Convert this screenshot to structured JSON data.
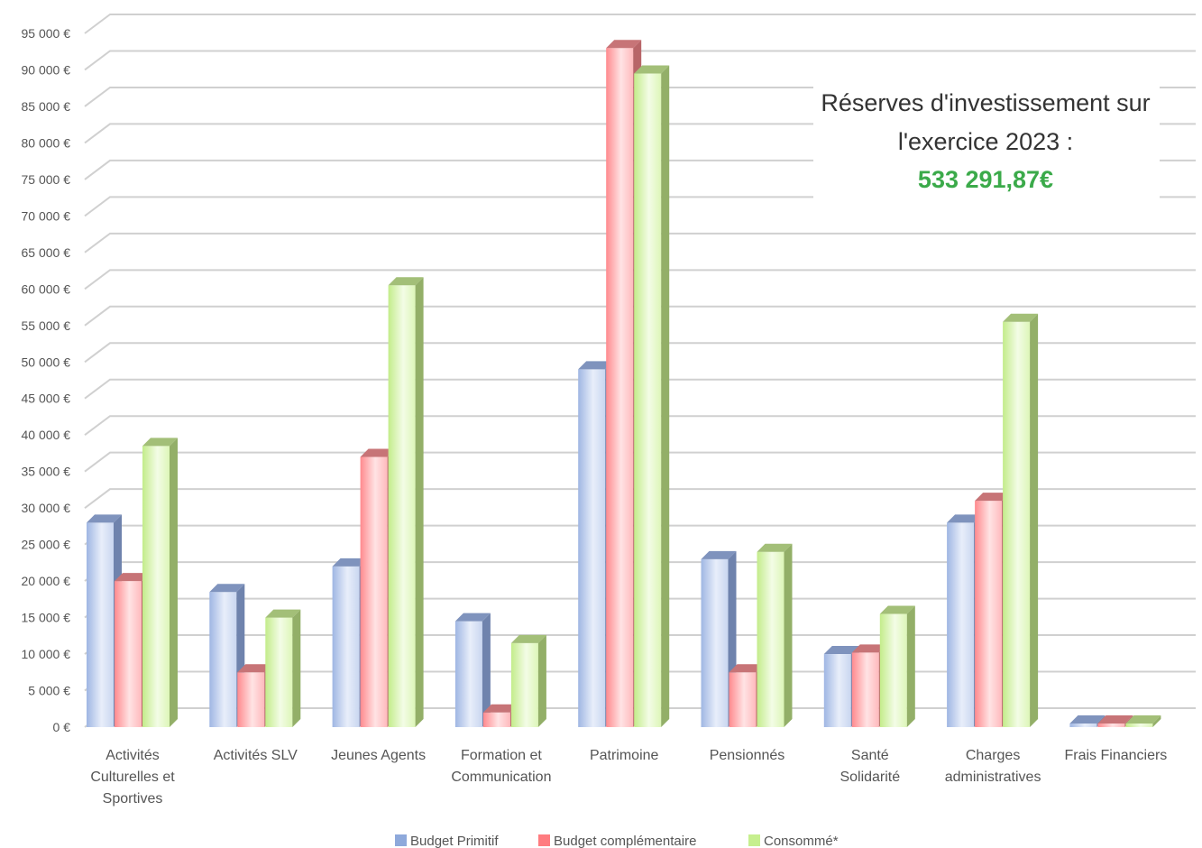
{
  "chart_data": {
    "type": "bar",
    "title": "",
    "xlabel": "",
    "ylabel": "",
    "ylim": [
      0,
      95000
    ],
    "ystep": 5000,
    "y_ticks": [
      "0 €",
      "5 000 €",
      "10 000 €",
      "15 000 €",
      "20 000 €",
      "25 000 €",
      "30 000 €",
      "35 000 €",
      "40 000 €",
      "45 000 €",
      "50 000 €",
      "55 000 €",
      "60 000 €",
      "65 000 €",
      "70 000 €",
      "75 000 €",
      "80 000 €",
      "85 000 €",
      "90 000 €",
      "95 000 €"
    ],
    "grid": true,
    "legend_position": "bottom",
    "categories": [
      [
        "Activités",
        "Culturelles et",
        "Sportives"
      ],
      [
        "Activités SLV"
      ],
      [
        "Jeunes Agents"
      ],
      [
        "Formation et",
        "Communication"
      ],
      [
        "Patrimoine"
      ],
      [
        "Pensionnés"
      ],
      [
        "Santé",
        "Solidarité"
      ],
      [
        "Charges",
        "administratives"
      ],
      [
        "Frais Financiers"
      ]
    ],
    "series": [
      {
        "name": "Budget Primitif",
        "color": "#8EA9DB",
        "values": [
          28000,
          18500,
          22000,
          14500,
          49000,
          23000,
          10000,
          28000,
          500
        ]
      },
      {
        "name": "Budget complémentaire",
        "color": "#FF7C80",
        "values": [
          20000,
          7500,
          37000,
          2000,
          93000,
          7500,
          10200,
          31000,
          500
        ]
      },
      {
        "name": "Consommé*",
        "color": "#C6EF8E",
        "values": [
          38500,
          15000,
          60500,
          11500,
          89500,
          24000,
          15500,
          55500,
          500
        ]
      }
    ],
    "annotation": {
      "line1": "Réserves d'investissement sur",
      "line2": "l'exercice 2023 :",
      "value": "533 291,87€",
      "value_color": "#3BAA4A"
    }
  }
}
